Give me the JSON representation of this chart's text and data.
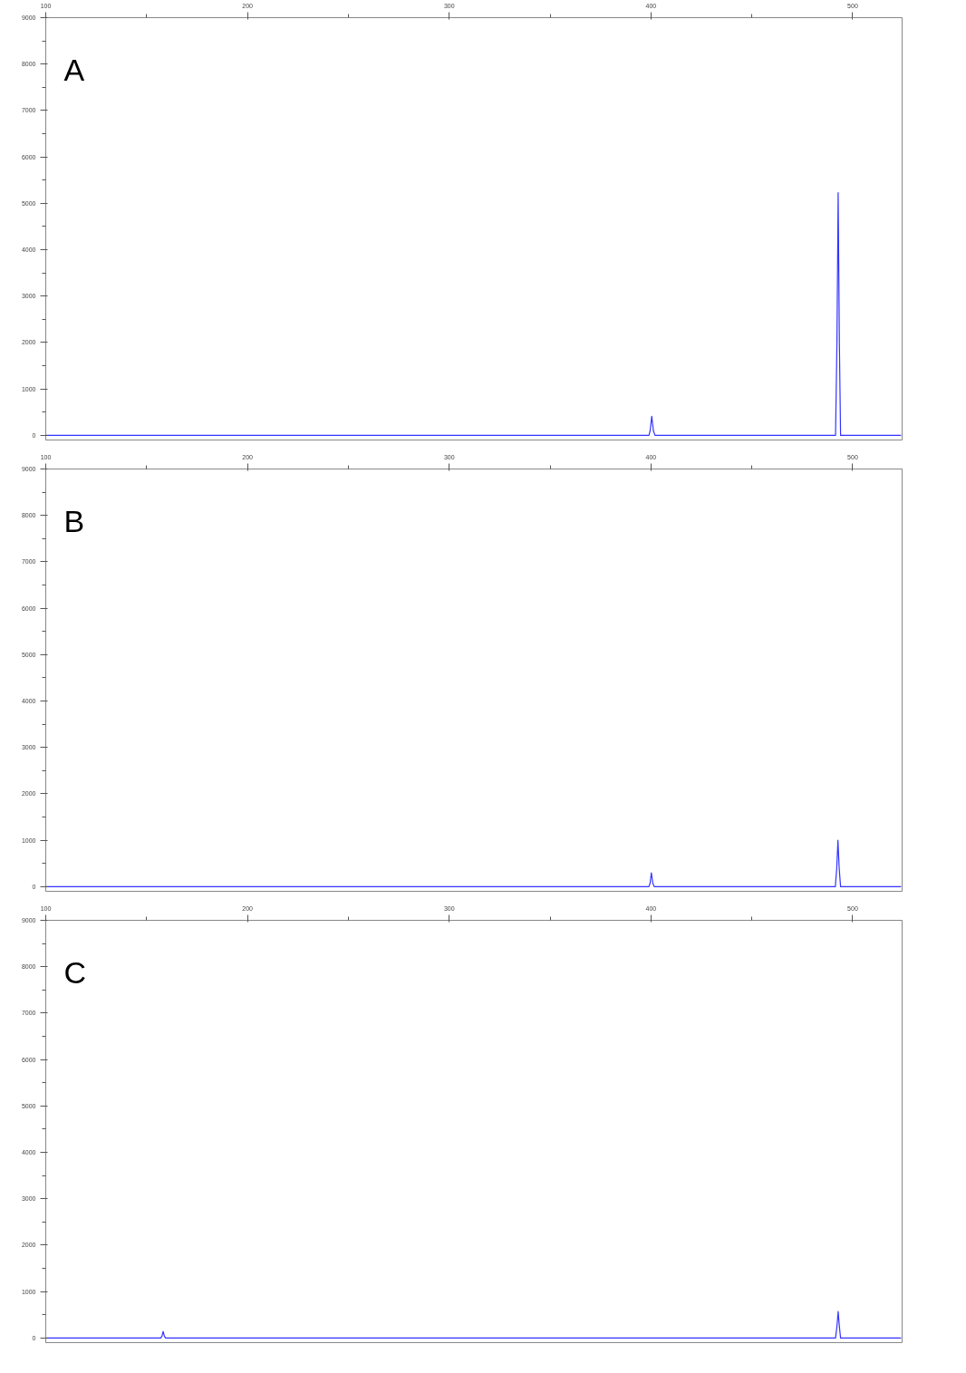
{
  "chart_data": [
    {
      "type": "line",
      "title": "A",
      "xlim": [
        100,
        524.5
      ],
      "ylim": [
        -100,
        9000
      ],
      "xticks": [
        100,
        {
          "value": 150,
          "label": null
        },
        200,
        {
          "value": 250,
          "label": null
        },
        300,
        {
          "value": 350,
          "label": null
        },
        400,
        {
          "value": 450,
          "label": null
        },
        500
      ],
      "yticks": [
        0,
        {
          "value": 500,
          "label": null
        },
        1000,
        {
          "value": 1500,
          "label": null
        },
        2000,
        {
          "value": 2500,
          "label": null
        },
        3000,
        {
          "value": 3500,
          "label": null
        },
        4000,
        {
          "value": 4500,
          "label": null
        },
        5000,
        {
          "value": 5500,
          "label": null
        },
        6000,
        {
          "value": 6500,
          "label": null
        },
        7000,
        {
          "value": 7500,
          "label": null
        },
        8000,
        {
          "value": 8500,
          "label": null
        },
        9000
      ],
      "grid": false,
      "marker": "none",
      "x": [
        100,
        399,
        399.6,
        400.4,
        401.2,
        402,
        491.5,
        492.2,
        492.8,
        493.4,
        494,
        524
      ],
      "series": [
        {
          "color": "#3333ff",
          "values": [
            0,
            0,
            100,
            410,
            100,
            0,
            0,
            2000,
            5230,
            2000,
            0,
            0
          ]
        }
      ]
    },
    {
      "type": "line",
      "title": "B",
      "xlim": [
        100,
        524.5
      ],
      "ylim": [
        -100,
        9000
      ],
      "xticks": [
        100,
        {
          "value": 150,
          "label": null
        },
        200,
        {
          "value": 250,
          "label": null
        },
        300,
        {
          "value": 350,
          "label": null
        },
        400,
        {
          "value": 450,
          "label": null
        },
        500
      ],
      "yticks": [
        0,
        {
          "value": 500,
          "label": null
        },
        1000,
        {
          "value": 1500,
          "label": null
        },
        2000,
        {
          "value": 2500,
          "label": null
        },
        3000,
        {
          "value": 3500,
          "label": null
        },
        4000,
        {
          "value": 4500,
          "label": null
        },
        5000,
        {
          "value": 5500,
          "label": null
        },
        6000,
        {
          "value": 6500,
          "label": null
        },
        7000,
        {
          "value": 7500,
          "label": null
        },
        8000,
        {
          "value": 8500,
          "label": null
        },
        9000
      ],
      "grid": false,
      "marker": "none",
      "x": [
        100,
        399,
        399.6,
        400.2,
        400.9,
        401.6,
        491.4,
        492.1,
        492.7,
        493.3,
        494,
        524
      ],
      "series": [
        {
          "color": "#3333ff",
          "values": [
            0,
            0,
            80,
            300,
            80,
            0,
            0,
            400,
            1000,
            400,
            0,
            0
          ]
        }
      ]
    },
    {
      "type": "line",
      "title": "C",
      "xlim": [
        100,
        524.5
      ],
      "ylim": [
        -100,
        9000
      ],
      "xticks": [
        100,
        {
          "value": 150,
          "label": null
        },
        200,
        {
          "value": 250,
          "label": null
        },
        300,
        {
          "value": 350,
          "label": null
        },
        400,
        {
          "value": 450,
          "label": null
        },
        500
      ],
      "yticks": [
        0,
        {
          "value": 500,
          "label": null
        },
        1000,
        {
          "value": 1500,
          "label": null
        },
        2000,
        {
          "value": 2500,
          "label": null
        },
        3000,
        {
          "value": 3500,
          "label": null
        },
        4000,
        {
          "value": 4500,
          "label": null
        },
        5000,
        {
          "value": 5500,
          "label": null
        },
        6000,
        {
          "value": 6500,
          "label": null
        },
        7000,
        {
          "value": 7500,
          "label": null
        },
        8000,
        {
          "value": 8500,
          "label": null
        },
        9000
      ],
      "grid": false,
      "marker": "none",
      "x": [
        100,
        157,
        157.6,
        158.2,
        158.8,
        159.4,
        491.5,
        492.2,
        492.8,
        493.4,
        494,
        524
      ],
      "series": [
        {
          "color": "#3333ff",
          "values": [
            0,
            0,
            40,
            140,
            40,
            0,
            0,
            250,
            570,
            250,
            0,
            0
          ]
        }
      ]
    }
  ]
}
